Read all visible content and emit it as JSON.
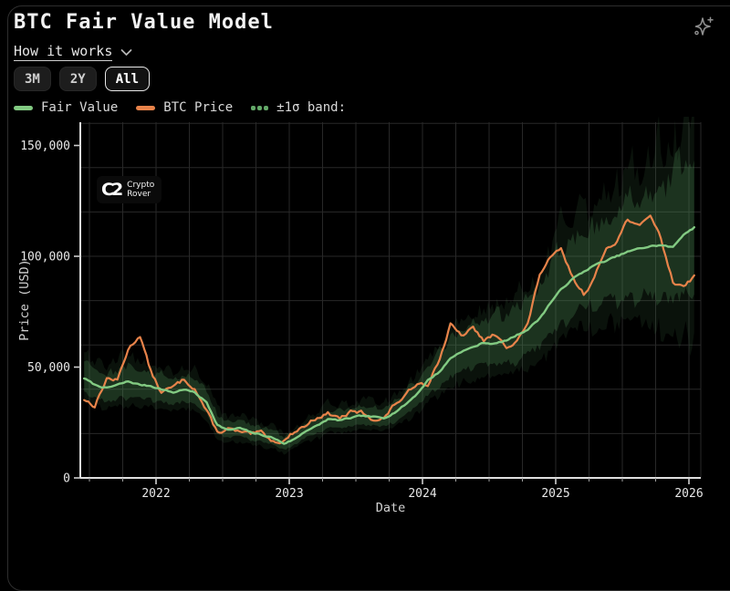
{
  "header": {
    "title": "BTC Fair Value Model",
    "how_it_works": "How it works"
  },
  "controls": {
    "ranges": [
      {
        "label": "3M",
        "active": false
      },
      {
        "label": "2Y",
        "active": false
      },
      {
        "label": "All",
        "active": true
      }
    ]
  },
  "legend": [
    {
      "label": "Fair Value",
      "marker": "dash",
      "color": "#82ca82"
    },
    {
      "label": "BTC Price",
      "marker": "dash",
      "color": "#e8834a"
    },
    {
      "label": "±1σ band:",
      "marker": "dots",
      "color": "#63a868"
    }
  ],
  "watermark": {
    "monogram": "C2",
    "line1": "Crypto",
    "line2": "Rover"
  },
  "chart_data": {
    "type": "line",
    "title": "BTC Fair Value Model",
    "xlabel": "Date",
    "ylabel": "Price (USD)",
    "x_ticks": [
      2022,
      2023,
      2024,
      2025,
      2026
    ],
    "y_ticks": [
      {
        "v": 0,
        "label": "0"
      },
      {
        "v": 50,
        "label": "50,000"
      },
      {
        "v": 100,
        "label": "100,000"
      },
      {
        "v": 150,
        "label": "150,000"
      }
    ],
    "xlim": [
      2021.44,
      2026.1
    ],
    "ylim_thousands": [
      0,
      161
    ],
    "grid": {
      "on": true,
      "x_step_years": 0.25,
      "y_step_thousands": 20
    },
    "legend_position": "top-left",
    "units": "thousand USD",
    "t": [
      2021.46,
      2021.54,
      2021.63,
      2021.71,
      2021.79,
      2021.88,
      2021.96,
      2022.04,
      2022.13,
      2022.21,
      2022.29,
      2022.38,
      2022.46,
      2022.54,
      2022.63,
      2022.71,
      2022.79,
      2022.88,
      2022.96,
      2023.04,
      2023.13,
      2023.21,
      2023.29,
      2023.38,
      2023.46,
      2023.54,
      2023.63,
      2023.71,
      2023.79,
      2023.88,
      2023.96,
      2024.04,
      2024.13,
      2024.21,
      2024.29,
      2024.38,
      2024.46,
      2024.54,
      2024.63,
      2024.71,
      2024.79,
      2024.88,
      2024.96,
      2025.04,
      2025.13,
      2025.21,
      2025.29,
      2025.38,
      2025.46,
      2025.54,
      2025.63,
      2025.71,
      2025.79,
      2025.88,
      2025.96,
      2026.04
    ],
    "series": [
      {
        "name": "Fair Value",
        "color": "#82ca82",
        "values": [
          45,
          42,
          40.5,
          42,
          43.5,
          42,
          41.5,
          40,
          38.5,
          40,
          38.5,
          34,
          24,
          21.5,
          22.5,
          20.5,
          19.5,
          18,
          15.5,
          17.5,
          21.5,
          23.5,
          26.5,
          26,
          27,
          28,
          27.5,
          27,
          29.5,
          33.5,
          38,
          44,
          48,
          54,
          57,
          59,
          61,
          60.5,
          62,
          64.5,
          67,
          72,
          79,
          85,
          90,
          93,
          96,
          98,
          100,
          102,
          103.5,
          104.5,
          105,
          104,
          110,
          113
        ]
      },
      {
        "name": "BTC Price",
        "color": "#e8834a",
        "values": [
          35.5,
          32.5,
          45,
          44,
          58,
          64.5,
          48,
          38.5,
          41,
          44.5,
          40.5,
          30,
          20.5,
          22,
          20.5,
          19.5,
          20.5,
          16.5,
          16.8,
          21,
          24,
          27.5,
          29,
          27,
          29.5,
          29.5,
          26.5,
          26.8,
          33,
          37.5,
          43,
          42.5,
          54,
          69,
          64,
          67.5,
          62,
          64.5,
          59,
          62.5,
          69,
          92,
          99,
          103,
          90,
          83,
          90,
          104,
          107,
          117,
          113,
          119,
          108,
          88,
          87,
          91
        ]
      }
    ],
    "band": {
      "name": "±1σ band",
      "around": "Fair Value",
      "fill": "#4a8050",
      "sigma_pct": [
        0.13,
        0.12,
        0.12,
        0.12,
        0.13,
        0.13,
        0.12,
        0.12,
        0.12,
        0.12,
        0.12,
        0.13,
        0.15,
        0.14,
        0.13,
        0.14,
        0.13,
        0.14,
        0.15,
        0.13,
        0.12,
        0.12,
        0.12,
        0.12,
        0.12,
        0.12,
        0.12,
        0.12,
        0.12,
        0.12,
        0.12,
        0.12,
        0.12,
        0.13,
        0.13,
        0.13,
        0.13,
        0.14,
        0.14,
        0.14,
        0.14,
        0.15,
        0.15,
        0.15,
        0.14,
        0.14,
        0.14,
        0.15,
        0.16,
        0.17,
        0.17,
        0.18,
        0.19,
        0.21,
        0.22,
        0.23
      ]
    }
  }
}
